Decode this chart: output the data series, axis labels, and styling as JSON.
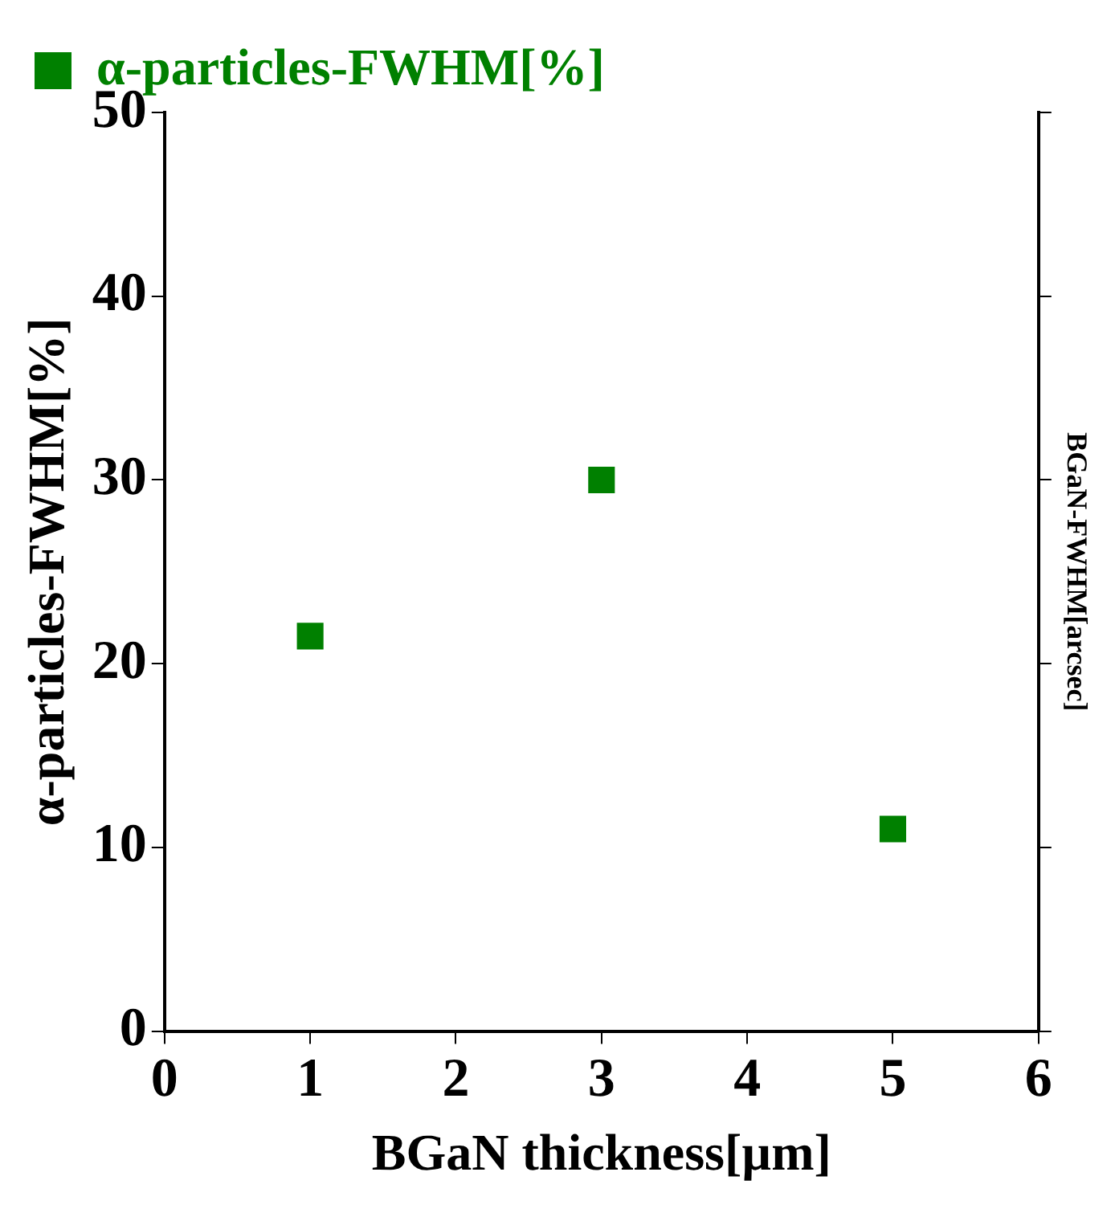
{
  "chart_data": {
    "type": "scatter",
    "xlabel": "BGaN thickness[µm]",
    "ylabel": "α-particles-FWHM[%]",
    "y2label": "BGaN-FWHM[arcsec]",
    "x": [
      1,
      3,
      5
    ],
    "series": [
      {
        "name": "α-particles-FWHM[%]",
        "color": "#008000",
        "values": [
          21.5,
          30,
          11
        ]
      }
    ],
    "xlim": [
      0,
      6
    ],
    "xticks": [
      0,
      1,
      2,
      3,
      4,
      5,
      6
    ],
    "ylim": [
      0,
      50
    ],
    "yticks": [
      0,
      10,
      20,
      30,
      40,
      50
    ],
    "grid": false,
    "legend": "top left",
    "marker": "square"
  }
}
